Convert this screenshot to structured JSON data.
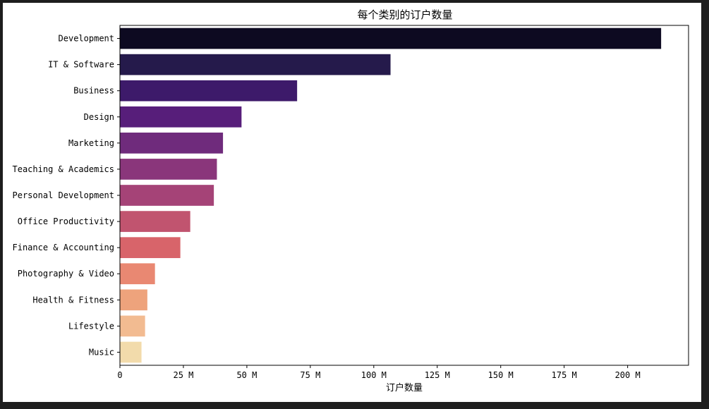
{
  "chart_data": {
    "type": "bar",
    "orientation": "horizontal",
    "title": "每个类别的订户数量",
    "xlabel": "订户数量",
    "ylabel": "",
    "categories": [
      "Development",
      "IT & Software",
      "Business",
      "Design",
      "Marketing",
      "Teaching & Academics",
      "Personal Development",
      "Office Productivity",
      "Finance & Accounting",
      "Photography & Video",
      "Health & Fitness",
      "Lifestyle",
      "Music"
    ],
    "values": [
      213.2,
      106.6,
      69.8,
      47.9,
      40.6,
      38.2,
      37.0,
      27.7,
      23.8,
      13.8,
      10.8,
      9.9,
      8.5
    ],
    "colors": [
      "#0d0a21",
      "#251a4b",
      "#3d1a6a",
      "#571e7a",
      "#6f2b7c",
      "#8a367b",
      "#a54377",
      "#c1546f",
      "#d8646a",
      "#e98872",
      "#eea37c",
      "#f2bb91",
      "#f2dbab"
    ],
    "xlim": [
      0,
      224
    ],
    "xticks": [
      {
        "value": 0,
        "label": "0"
      },
      {
        "value": 25,
        "label": "25 M"
      },
      {
        "value": 50,
        "label": "50 M"
      },
      {
        "value": 75,
        "label": "75 M"
      },
      {
        "value": 100,
        "label": "100 M"
      },
      {
        "value": 125,
        "label": "125 M"
      },
      {
        "value": 150,
        "label": "150 M"
      },
      {
        "value": 175,
        "label": "175 M"
      },
      {
        "value": 200,
        "label": "200 M"
      }
    ],
    "unit": "M",
    "grid": false,
    "legend": "none"
  }
}
